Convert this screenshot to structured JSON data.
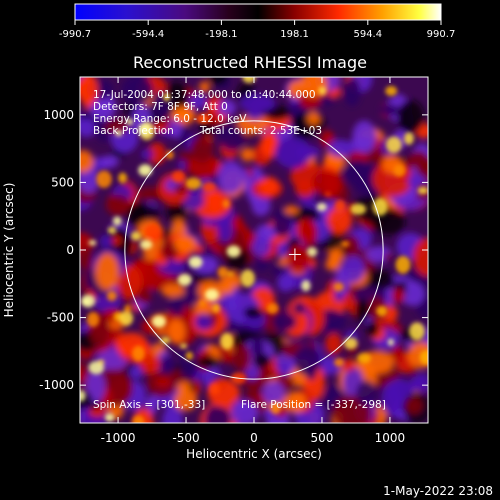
{
  "colorbar": {
    "ticks": [
      "-990.7",
      "-594.4",
      "-198.1",
      "198.1",
      "594.4",
      "990.7"
    ],
    "min": -990.7,
    "max": 990.7,
    "colors": [
      "#0000ff",
      "#3a00a0",
      "#4a0060",
      "#000000",
      "#8a0000",
      "#ff2000",
      "#ff9a00",
      "#ffff40",
      "#ffffff"
    ]
  },
  "image": {
    "title": "Reconstructed RHESSI Image",
    "xlabel": "Heliocentric X (arcsec)",
    "ylabel": "Heliocentric Y (arcsec)",
    "xticks": [
      "-1000",
      "-500",
      "0",
      "500",
      "1000"
    ],
    "yticks": [
      "1000",
      "500",
      "0",
      "-500",
      "-1000"
    ],
    "xlim": [
      -1280,
      1280
    ],
    "ylim": [
      -1280,
      1280
    ],
    "annotations": {
      "time_range": "17-Jul-2004 01:37:48.000 to 01:40:44.000",
      "detectors": "Detectors: 7F 8F 9F, Att 0",
      "energy": "Energy Range: 6.0 - 12.0 keV",
      "method": "Back Projection",
      "counts": "Total counts: 2.53E+03",
      "spin_axis": "Spin Axis = [301,-33]",
      "flare_position": "Flare Position = [-337,-298]"
    },
    "solar_limb_radius_arcsec": 950,
    "marker_position_arcsec": [
      301,
      -33
    ]
  },
  "footer": {
    "timestamp": "1-May-2022 23:08"
  }
}
